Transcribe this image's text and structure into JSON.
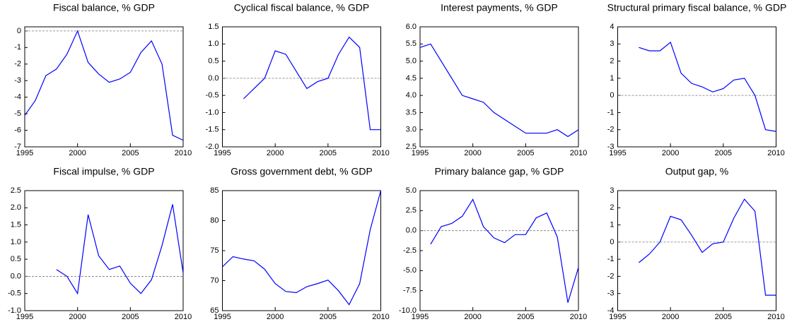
{
  "chart_data": [
    {
      "type": "line",
      "title": "Fiscal balance, % GDP",
      "x": [
        1995,
        1996,
        1997,
        1998,
        1999,
        2000,
        2001,
        2002,
        2003,
        2004,
        2005,
        2006,
        2007,
        2008,
        2009,
        2010
      ],
      "values": [
        -5.1,
        -4.2,
        -2.7,
        -2.3,
        -1.4,
        0.0,
        -1.9,
        -2.6,
        -3.1,
        -2.9,
        -2.5,
        -1.3,
        -0.6,
        -2.0,
        -6.3,
        -6.6
      ],
      "color": "#0000ff",
      "xlim": [
        1995,
        2010
      ],
      "xticks": [
        1995,
        2000,
        2005,
        2010
      ],
      "ylim": [
        -7,
        0.25
      ],
      "yticks": [
        -7,
        -6,
        -5,
        -4,
        -3,
        -2,
        -1,
        0
      ],
      "zero_line": true
    },
    {
      "type": "line",
      "title": "Cyclical fiscal balance, % GDP",
      "x": [
        1995,
        1996,
        1997,
        1998,
        1999,
        2000,
        2001,
        2002,
        2003,
        2004,
        2005,
        2006,
        2007,
        2008,
        2009,
        2010
      ],
      "values": [
        null,
        null,
        -0.6,
        -0.3,
        0.0,
        0.8,
        0.7,
        0.2,
        -0.3,
        -0.1,
        0.0,
        0.7,
        1.2,
        0.9,
        -1.5,
        -1.5
      ],
      "color": "#0000ff",
      "xlim": [
        1995,
        2010
      ],
      "xticks": [
        1995,
        2000,
        2005,
        2010
      ],
      "ylim": [
        -2,
        1.5
      ],
      "yticks": [
        {
          "value": -2,
          "label": "-2.0"
        },
        -1.5,
        {
          "value": -1,
          "label": "-1.0"
        },
        -0.5,
        {
          "value": 0,
          "label": "0.0"
        },
        0.5,
        {
          "value": 1,
          "label": "1.0"
        },
        1.5
      ],
      "zero_line": true
    },
    {
      "type": "line",
      "title": "Interest payments, % GDP",
      "x": [
        1995,
        1996,
        1997,
        1998,
        1999,
        2000,
        2001,
        2002,
        2003,
        2004,
        2005,
        2006,
        2007,
        2008,
        2009,
        2010
      ],
      "values": [
        5.4,
        5.5,
        5.0,
        4.5,
        4.0,
        3.9,
        3.8,
        3.5,
        3.3,
        3.1,
        2.9,
        2.9,
        2.9,
        3.0,
        2.8,
        3.0
      ],
      "color": "#0000ff",
      "xlim": [
        1995,
        2010
      ],
      "xticks": [
        1995,
        2000,
        2005,
        2010
      ],
      "ylim": [
        2.5,
        6
      ],
      "yticks": [
        2.5,
        {
          "value": 3,
          "label": "3.0"
        },
        3.5,
        {
          "value": 4,
          "label": "4.0"
        },
        4.5,
        {
          "value": 5,
          "label": "5.0"
        },
        5.5,
        {
          "value": 6,
          "label": "6.0"
        }
      ],
      "zero_line": false
    },
    {
      "type": "line",
      "title": "Structural primary fiscal balance, % GDP",
      "x": [
        1995,
        1996,
        1997,
        1998,
        1999,
        2000,
        2001,
        2002,
        2003,
        2004,
        2005,
        2006,
        2007,
        2008,
        2009,
        2010
      ],
      "values": [
        null,
        null,
        2.8,
        2.6,
        2.6,
        3.1,
        1.3,
        0.7,
        0.5,
        0.2,
        0.4,
        0.9,
        1.0,
        0.0,
        -2.0,
        -2.1
      ],
      "color": "#0000ff",
      "xlim": [
        1995,
        2010
      ],
      "xticks": [
        1995,
        2000,
        2005,
        2010
      ],
      "ylim": [
        -3,
        4
      ],
      "yticks": [
        -3,
        -2,
        -1,
        0,
        1,
        2,
        3,
        4
      ],
      "zero_line": true
    },
    {
      "type": "line",
      "title": "Fiscal impulse, % GDP",
      "x": [
        1995,
        1996,
        1997,
        1998,
        1999,
        2000,
        2001,
        2002,
        2003,
        2004,
        2005,
        2006,
        2007,
        2008,
        2009,
        2010
      ],
      "values": [
        null,
        null,
        null,
        0.2,
        0.0,
        -0.5,
        1.8,
        0.6,
        0.2,
        0.3,
        -0.2,
        -0.5,
        -0.1,
        0.9,
        2.1,
        0.1
      ],
      "color": "#0000ff",
      "xlim": [
        1995,
        2010
      ],
      "xticks": [
        1995,
        2000,
        2005,
        2010
      ],
      "ylim": [
        -1,
        2.5
      ],
      "yticks": [
        {
          "value": -1,
          "label": "-1.0"
        },
        -0.5,
        {
          "value": 0,
          "label": "0.0"
        },
        0.5,
        {
          "value": 1,
          "label": "1.0"
        },
        1.5,
        {
          "value": 2,
          "label": "2.0"
        },
        2.5
      ],
      "zero_line": true
    },
    {
      "type": "line",
      "title": "Gross government debt, % GDP",
      "x": [
        1995,
        1996,
        1997,
        1998,
        1999,
        2000,
        2001,
        2002,
        2003,
        2004,
        2005,
        2006,
        2007,
        2008,
        2009,
        2010
      ],
      "values": [
        72.3,
        74.0,
        73.6,
        73.3,
        71.9,
        69.5,
        68.2,
        68.0,
        69.0,
        69.5,
        70.1,
        68.3,
        66.0,
        69.5,
        78.5,
        85.0
      ],
      "color": "#0000ff",
      "xlim": [
        1995,
        2010
      ],
      "xticks": [
        1995,
        2000,
        2005,
        2010
      ],
      "ylim": [
        65,
        85
      ],
      "yticks": [
        65,
        70,
        75,
        80,
        85
      ],
      "zero_line": false
    },
    {
      "type": "line",
      "title": "Primary balance gap, % GDP",
      "x": [
        1995,
        1996,
        1997,
        1998,
        1999,
        2000,
        2001,
        2002,
        2003,
        2004,
        2005,
        2006,
        2007,
        2008,
        2009,
        2010
      ],
      "values": [
        null,
        -1.7,
        0.5,
        0.9,
        1.8,
        3.9,
        0.5,
        -0.9,
        -1.5,
        -0.5,
        -0.5,
        1.6,
        2.2,
        -0.8,
        -9.0,
        -4.6
      ],
      "color": "#0000ff",
      "xlim": [
        1995,
        2010
      ],
      "xticks": [
        1995,
        2000,
        2005,
        2010
      ],
      "ylim": [
        -10,
        5
      ],
      "yticks": [
        {
          "value": -10,
          "label": "-10.0"
        },
        -7.5,
        {
          "value": -5,
          "label": "-5.0"
        },
        -2.5,
        {
          "value": 0,
          "label": "0.0"
        },
        2.5,
        {
          "value": 5,
          "label": "5.0"
        }
      ],
      "zero_line": true
    },
    {
      "type": "line",
      "title": "Output gap, %",
      "x": [
        1995,
        1996,
        1997,
        1998,
        1999,
        2000,
        2001,
        2002,
        2003,
        2004,
        2005,
        2006,
        2007,
        2008,
        2009,
        2010
      ],
      "values": [
        null,
        null,
        -1.2,
        -0.7,
        0.0,
        1.5,
        1.3,
        0.4,
        -0.6,
        -0.1,
        0.0,
        1.4,
        2.5,
        1.8,
        -3.1,
        -3.1
      ],
      "color": "#0000ff",
      "xlim": [
        1995,
        2010
      ],
      "xticks": [
        1995,
        2000,
        2005,
        2010
      ],
      "ylim": [
        -4,
        3
      ],
      "yticks": [
        -4,
        -3,
        -2,
        -1,
        0,
        1,
        2,
        3
      ],
      "zero_line": true
    }
  ]
}
